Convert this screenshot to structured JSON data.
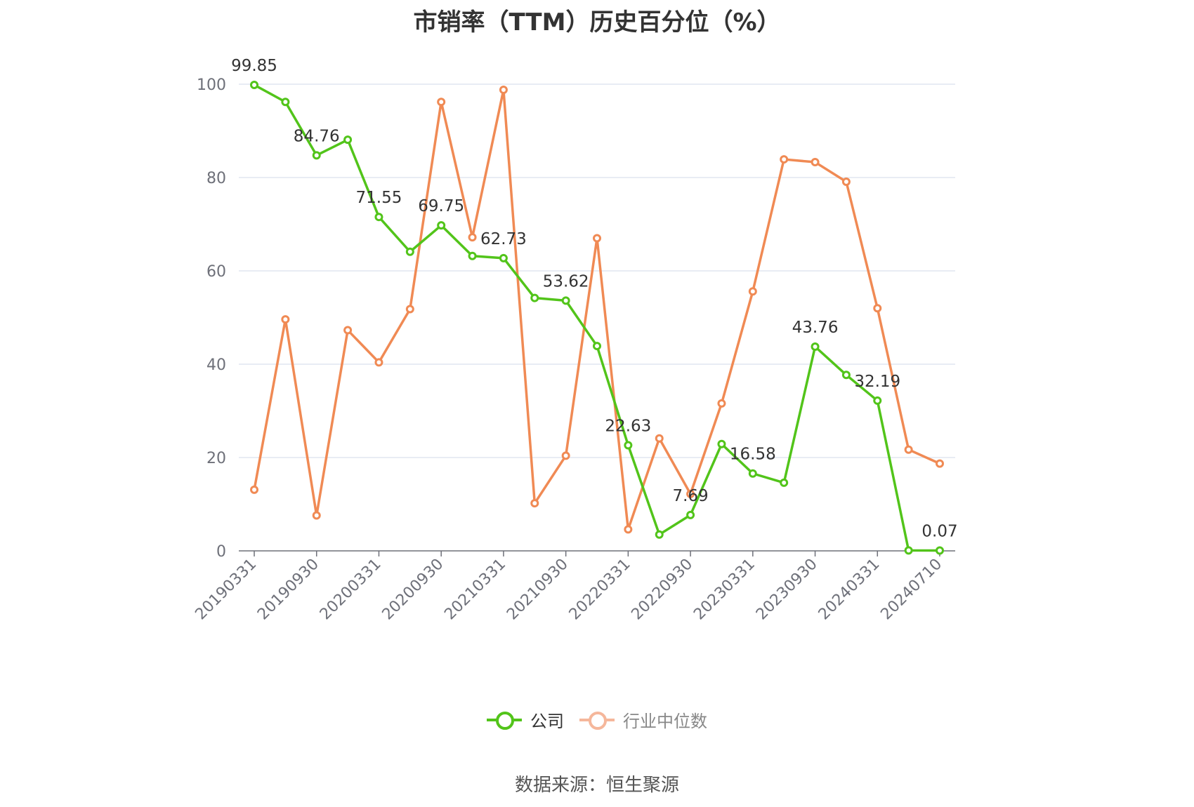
{
  "title": "市销率（TTM）历史百分位（%）",
  "source": "数据来源：恒生聚源",
  "colors": {
    "company": "#52c41a",
    "industry": "#f08a54",
    "industry_legend": "#f5b79b",
    "grid": "#e0e6f1",
    "axis": "#6e7079",
    "tick": "#6e7079",
    "label": "#333333"
  },
  "chart_data": {
    "type": "line",
    "title": "市销率（TTM）历史百分位（%）",
    "x": [
      "20190331",
      "20190630",
      "20190930",
      "20191231",
      "20200331",
      "20200630",
      "20200930",
      "20201231",
      "20210331",
      "20210630",
      "20210930",
      "20211231",
      "20220331",
      "20220630",
      "20220930",
      "20221231",
      "20230331",
      "20230630",
      "20230930",
      "20231231",
      "20240331",
      "20240630",
      "20240710"
    ],
    "x_tick_labels": [
      "20190331",
      "20190930",
      "20200331",
      "20200930",
      "20210331",
      "20210930",
      "20220331",
      "20220930",
      "20230331",
      "20230930",
      "20240331",
      "20240710"
    ],
    "ylim": [
      0,
      100
    ],
    "y_ticks": [
      0,
      20,
      40,
      60,
      80,
      100
    ],
    "grid": true,
    "legend_position": "bottom-center",
    "series": [
      {
        "name": "公司",
        "color": "#52c41a",
        "values": [
          99.85,
          96.2,
          84.76,
          88.1,
          71.55,
          64.1,
          69.75,
          63.2,
          62.73,
          54.2,
          53.62,
          43.9,
          22.63,
          3.5,
          7.69,
          22.9,
          16.58,
          14.6,
          43.76,
          37.7,
          32.19,
          0.1,
          0.07
        ],
        "data_labels": {
          "0": "99.85",
          "2": "84.76",
          "4": "71.55",
          "6": "69.75",
          "8": "62.73",
          "10": "53.62",
          "12": "22.63",
          "14": "7.69",
          "16": "16.58",
          "18": "43.76",
          "20": "32.19",
          "22": "0.07"
        }
      },
      {
        "name": "行业中位数",
        "color": "#f08a54",
        "values": [
          13.1,
          49.6,
          7.6,
          47.3,
          40.4,
          51.8,
          96.2,
          67.2,
          98.8,
          10.2,
          20.4,
          67.0,
          4.6,
          24.1,
          12.2,
          31.6,
          55.6,
          83.9,
          83.3,
          79.1,
          52.0,
          21.7,
          18.7
        ]
      }
    ]
  }
}
